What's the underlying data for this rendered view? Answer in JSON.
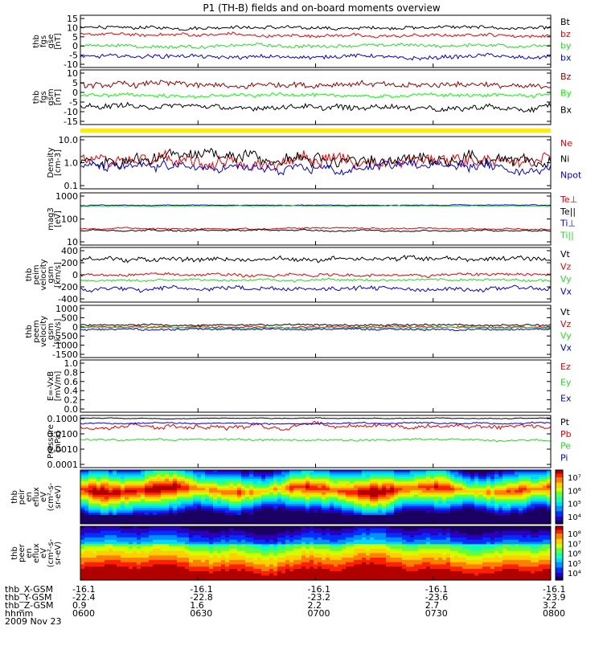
{
  "title": "P1 (TH-B) fields and on-board moments overview",
  "date_label": "2009 Nov 23",
  "colors": {
    "black": "#000000",
    "red": "#ee0000",
    "green": "#22dd22",
    "blue": "#0000dd",
    "darkred": "#990000",
    "bright_green": "#00ff00",
    "yellow": "#ffee00"
  },
  "chart_data": [
    {
      "type": "line",
      "ylabel": [
        "thb",
        "fgs",
        "gse",
        "[nT]"
      ],
      "yticks": [
        "15",
        "10",
        "5",
        "0",
        "-5",
        "-10"
      ],
      "ylim": [
        -13,
        16
      ],
      "series": [
        {
          "name": "Bt",
          "color": "black",
          "center": 9,
          "amp": 2.5
        },
        {
          "name": "bz",
          "color": "red",
          "center": 5,
          "amp": 2.5
        },
        {
          "name": "by",
          "color": "green",
          "center": -1,
          "amp": 2.5
        },
        {
          "name": "bx",
          "color": "blue",
          "center": -7,
          "amp": 3
        }
      ]
    },
    {
      "type": "line",
      "ylabel": [
        "thb",
        "fgs",
        "gsm",
        "[nT]"
      ],
      "yticks": [
        "10",
        "5",
        "0",
        "-5",
        "-10",
        "-15"
      ],
      "ylim": [
        -17,
        11
      ],
      "series": [
        {
          "name": "Bz",
          "color": "darkred",
          "center": 3,
          "amp": 4
        },
        {
          "name": "By",
          "color": "bright_green",
          "center": -2,
          "amp": 2.5
        },
        {
          "name": "Bx",
          "color": "black",
          "center": -8,
          "amp": 4
        }
      ]
    },
    {
      "type": "line",
      "ylabel": [
        "Density",
        "[cm-3]"
      ],
      "yticks": [
        "10.0",
        "1.0",
        "0.1"
      ],
      "log": true,
      "ylim": [
        0.1,
        12
      ],
      "series": [
        {
          "name": "Ne",
          "color": "red",
          "center": 1.5,
          "amp": 1.2
        },
        {
          "name": "Ni",
          "color": "black",
          "center": 1.5,
          "amp": 1.2
        },
        {
          "name": "Npot",
          "color": "blue",
          "center": 0.8,
          "amp": 0.8
        }
      ]
    },
    {
      "type": "line",
      "ylabel": [
        "mag3",
        "[eV]"
      ],
      "yticks": [
        "1000",
        "100",
        "10"
      ],
      "log": true,
      "ylim": [
        6,
        5000
      ],
      "series": [
        {
          "name": "Te⊥",
          "color": "red",
          "center": 50,
          "amp": 0.2
        },
        {
          "name": "Te||",
          "color": "black",
          "center": 40,
          "amp": 0.2
        },
        {
          "name": "Ti⊥",
          "color": "blue",
          "center": 1000,
          "amp": 0.1
        },
        {
          "name": "Ti||",
          "color": "green",
          "center": 900,
          "amp": 0.1
        }
      ]
    },
    {
      "type": "line",
      "ylabel": [
        "thb",
        "peim",
        "velocity",
        "gsm",
        "[km/s]"
      ],
      "yticks": [
        "400",
        "200",
        "0",
        "-200",
        "-400"
      ],
      "ylim": [
        -400,
        420
      ],
      "series": [
        {
          "name": "Vt",
          "color": "black",
          "center": 250,
          "amp": 90
        },
        {
          "name": "Vz",
          "color": "red",
          "center": 10,
          "amp": 60
        },
        {
          "name": "Vy",
          "color": "green",
          "center": -70,
          "amp": 50
        },
        {
          "name": "Vx",
          "color": "blue",
          "center": -200,
          "amp": 90
        }
      ]
    },
    {
      "type": "line",
      "ylabel": [
        "thb",
        "peem",
        "velocity",
        "gsm",
        "[km/s]"
      ],
      "yticks": [
        "1000",
        "500",
        "0",
        "-500",
        "-1000",
        "-1500"
      ],
      "ylim": [
        -1500,
        1100
      ],
      "series": [
        {
          "name": "Vt",
          "color": "black",
          "center": 120,
          "amp": 120
        },
        {
          "name": "Vz",
          "color": "red",
          "center": 20,
          "amp": 120
        },
        {
          "name": "Vy",
          "color": "green",
          "center": -20,
          "amp": 80
        },
        {
          "name": "Vx",
          "color": "blue",
          "center": -100,
          "amp": 120
        }
      ]
    },
    {
      "type": "line",
      "ylabel": [
        "E=-VxB",
        "[mV/m]"
      ],
      "yticks": [
        "1.0",
        "0.8",
        "0.6",
        "0.4",
        "0.2",
        "0.0"
      ],
      "ylim": [
        0,
        1
      ],
      "series": [
        {
          "name": "Ez",
          "color": "red"
        },
        {
          "name": "Ey",
          "color": "green"
        },
        {
          "name": "Ex",
          "color": "blue"
        }
      ]
    },
    {
      "type": "line",
      "ylabel": [
        "Pressure",
        "[nPa]"
      ],
      "yticks": [
        "0.1000",
        "0.0100",
        "0.0010",
        "0.0001"
      ],
      "log": true,
      "ylim": [
        0.0001,
        0.15
      ],
      "series": [
        {
          "name": "Pt",
          "color": "black",
          "center": 0.1,
          "amp": 0.1
        },
        {
          "name": "Pb",
          "color": "red",
          "center": 0.03,
          "amp": 0.6
        },
        {
          "name": "Pe",
          "color": "green",
          "center": 0.005,
          "amp": 0.3
        },
        {
          "name": "Pi",
          "color": "blue",
          "center": 0.05,
          "amp": 0.2
        }
      ]
    },
    {
      "type": "heatmap",
      "ylabel": [
        "thb",
        "peir",
        "en",
        "eflux",
        "eV",
        "(cm²-s-",
        "sr-eV)"
      ],
      "yticks": [
        "10000",
        "1000",
        "100",
        "10"
      ],
      "colorbar_ticks": [
        "10⁷",
        "10⁶",
        "10⁵",
        "10⁴"
      ]
    },
    {
      "type": "heatmap",
      "ylabel": [
        "thb",
        "peer",
        "en",
        "eflux",
        "eV",
        "(cm²-s-",
        "sr-eV)"
      ],
      "yticks": [
        "10000",
        "1000",
        "100",
        "10"
      ],
      "colorbar_ticks": [
        "10⁸",
        "10⁷",
        "10⁶",
        "10⁵",
        "10⁴"
      ]
    }
  ],
  "time_axis": {
    "row_labels": [
      "thb_X-GSM",
      "thb_Y-GSM",
      "thb_Z-GSM",
      "hhmm"
    ],
    "columns": [
      [
        "-16.1",
        "-22.4",
        "0.9",
        "0600"
      ],
      [
        "-16.1",
        "-22.8",
        "1.6",
        "0630"
      ],
      [
        "-16.1",
        "-23.2",
        "2.2",
        "0700"
      ],
      [
        "-16.1",
        "-23.6",
        "2.7",
        "0730"
      ],
      [
        "-16.1",
        "-23.9",
        "3.2",
        "0800"
      ]
    ]
  }
}
